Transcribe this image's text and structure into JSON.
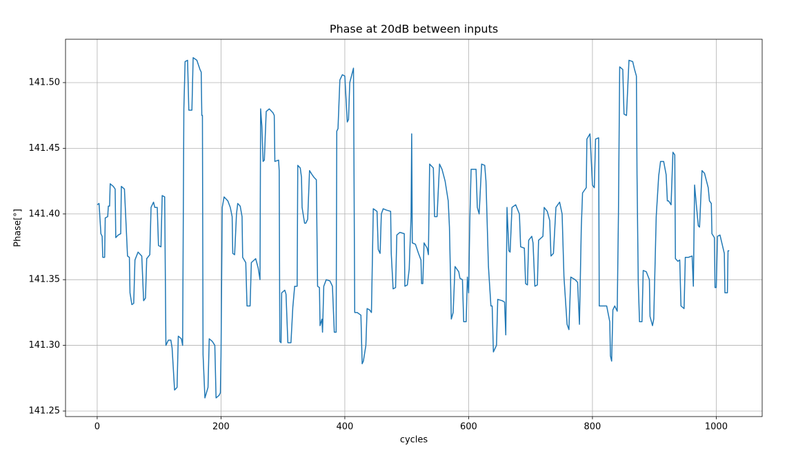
{
  "chart_data": {
    "type": "line",
    "title": "Phase at 20dB between inputs",
    "x_label": "cycles",
    "y_label": "Phase[°]",
    "xlim": [
      -51.15,
      1074.15
    ],
    "ylim": [
      141.2458,
      141.533
    ],
    "xticks": [
      0,
      200,
      400,
      600,
      800,
      1000
    ],
    "yticks": [
      141.25,
      {
        "value": 141.3,
        "label": "141.30"
      },
      141.35,
      {
        "value": 141.4,
        "label": "141.40"
      },
      141.45,
      {
        "value": 141.5,
        "label": "141.50"
      }
    ],
    "grid": true,
    "series": [
      {
        "color": "#1f77b4",
        "x": [
          0,
          3,
          6,
          8,
          9,
          12,
          13,
          17,
          18,
          20,
          21,
          26,
          29,
          30,
          34,
          38,
          39,
          44,
          49,
          52,
          53,
          56,
          59,
          61,
          66,
          72,
          75,
          78,
          80,
          85,
          87,
          91,
          93,
          97,
          99,
          103,
          105,
          109,
          111,
          115,
          119,
          121,
          125,
          129,
          131,
          136,
          138,
          140,
          142,
          146,
          148,
          153,
          155,
          161,
          166,
          168,
          169,
          170,
          171,
          174,
          179,
          181,
          186,
          190,
          192,
          197,
          199,
          200,
          202,
          205,
          211,
          215,
          218,
          219,
          222,
          225,
          227,
          231,
          234,
          235,
          240,
          242,
          247,
          249,
          256,
          260,
          263,
          264,
          266,
          268,
          270,
          273,
          278,
          284,
          286,
          287,
          293,
          294,
          295,
          297,
          298,
          303,
          305,
          308,
          313,
          316,
          319,
          323,
          324,
          328,
          330,
          331,
          335,
          337,
          340,
          343,
          347,
          350,
          354,
          356,
          359,
          360,
          363,
          364,
          366,
          370,
          376,
          380,
          383,
          386,
          387,
          389,
          392,
          396,
          400,
          404,
          406,
          408,
          414,
          416,
          420,
          426,
          428,
          430,
          434,
          436,
          440,
          443,
          446,
          452,
          454,
          457,
          459,
          462,
          467,
          474,
          475,
          478,
          482,
          484,
          489,
          496,
          497,
          501,
          504,
          507,
          508,
          509,
          514,
          519,
          523,
          524,
          526,
          528,
          533,
          535,
          537,
          543,
          545,
          549,
          553,
          557,
          562,
          567,
          569,
          571,
          572,
          575,
          578,
          584,
          586,
          590,
          592,
          596,
          598,
          600,
          602,
          604,
          612,
          614,
          617,
          621,
          626,
          628,
          632,
          636,
          638,
          640,
          645,
          647,
          654,
          658,
          660,
          662,
          665,
          667,
          670,
          676,
          682,
          684,
          690,
          692,
          695,
          697,
          702,
          704,
          707,
          711,
          713,
          720,
          722,
          727,
          731,
          733,
          737,
          741,
          747,
          751,
          754,
          759,
          762,
          765,
          772,
          776,
          779,
          782,
          784,
          790,
          791,
          796,
          800,
          803,
          805,
          810,
          811,
          818,
          823,
          828,
          829,
          831,
          833,
          836,
          840,
          842,
          844,
          849,
          851,
          855,
          859,
          865,
          868,
          871,
          872,
          874,
          876,
          880,
          882,
          887,
          892,
          893,
          897,
          899,
          903,
          907,
          910,
          915,
          919,
          921,
          923,
          927,
          930,
          933,
          934,
          938,
          941,
          943,
          948,
          950,
          955,
          961,
          963,
          965,
          968,
          971,
          973,
          977,
          981,
          987,
          989,
          992,
          993,
          997,
          998,
          1000,
          1002,
          1006,
          1009,
          1013,
          1014,
          1018,
          1019,
          1021
        ],
        "values": [
          141.407,
          141.408,
          141.385,
          141.383,
          141.367,
          141.367,
          141.397,
          141.398,
          141.406,
          141.406,
          141.423,
          141.421,
          141.419,
          141.382,
          141.384,
          141.385,
          141.421,
          141.419,
          141.368,
          141.367,
          141.34,
          141.331,
          141.332,
          141.365,
          141.371,
          141.368,
          141.334,
          141.336,
          141.366,
          141.369,
          141.405,
          141.409,
          141.405,
          141.405,
          141.376,
          141.375,
          141.414,
          141.413,
          141.3,
          141.304,
          141.304,
          141.298,
          141.266,
          141.268,
          141.307,
          141.305,
          141.3,
          141.48,
          141.516,
          141.517,
          141.479,
          141.479,
          141.519,
          141.517,
          141.51,
          141.508,
          141.475,
          141.475,
          141.293,
          141.26,
          141.268,
          141.305,
          141.303,
          141.3,
          141.26,
          141.262,
          141.264,
          141.292,
          141.405,
          141.413,
          141.41,
          141.405,
          141.398,
          141.37,
          141.369,
          141.4,
          141.408,
          141.406,
          141.398,
          141.367,
          141.363,
          141.33,
          141.33,
          141.363,
          141.366,
          141.359,
          141.35,
          141.48,
          141.467,
          141.44,
          141.441,
          141.478,
          141.48,
          141.477,
          141.475,
          141.44,
          141.441,
          141.433,
          141.303,
          141.302,
          141.34,
          141.342,
          141.339,
          141.302,
          141.302,
          141.329,
          141.345,
          141.345,
          141.437,
          141.435,
          141.428,
          141.405,
          141.393,
          141.393,
          141.396,
          141.433,
          141.43,
          141.428,
          141.426,
          141.345,
          141.344,
          141.315,
          141.32,
          141.31,
          141.345,
          141.35,
          141.349,
          141.345,
          141.31,
          141.31,
          141.463,
          141.465,
          141.502,
          141.506,
          141.505,
          141.47,
          141.472,
          141.5,
          141.511,
          141.325,
          141.325,
          141.323,
          141.286,
          141.288,
          141.3,
          141.328,
          141.327,
          141.325,
          141.404,
          141.402,
          141.373,
          141.37,
          141.4,
          141.404,
          141.403,
          141.402,
          141.37,
          141.343,
          141.344,
          141.384,
          141.386,
          141.385,
          141.345,
          141.346,
          141.358,
          141.398,
          141.461,
          141.378,
          141.377,
          141.37,
          141.365,
          141.347,
          141.347,
          141.378,
          141.374,
          141.369,
          141.438,
          141.435,
          141.398,
          141.398,
          141.438,
          141.434,
          141.425,
          141.41,
          141.39,
          141.345,
          141.32,
          141.325,
          141.36,
          141.356,
          141.351,
          141.35,
          141.318,
          141.318,
          141.352,
          141.34,
          141.397,
          141.434,
          141.434,
          141.405,
          141.4,
          141.438,
          141.437,
          141.425,
          141.36,
          141.33,
          141.33,
          141.295,
          141.3,
          141.335,
          141.334,
          141.333,
          141.308,
          141.405,
          141.372,
          141.371,
          141.405,
          141.407,
          141.4,
          141.375,
          141.374,
          141.347,
          141.346,
          141.38,
          141.383,
          141.378,
          141.345,
          141.346,
          141.38,
          141.383,
          141.405,
          141.402,
          141.395,
          141.368,
          141.37,
          141.405,
          141.409,
          141.4,
          141.352,
          141.316,
          141.312,
          141.352,
          141.35,
          141.348,
          141.316,
          141.39,
          141.416,
          141.42,
          141.457,
          141.461,
          141.422,
          141.42,
          141.457,
          141.458,
          141.33,
          141.33,
          141.33,
          141.318,
          141.292,
          141.288,
          141.327,
          141.33,
          141.326,
          141.4,
          141.512,
          141.51,
          141.476,
          141.475,
          141.517,
          141.516,
          141.51,
          141.505,
          141.43,
          141.348,
          141.318,
          141.318,
          141.357,
          141.356,
          141.35,
          141.322,
          141.315,
          141.32,
          141.398,
          141.429,
          141.44,
          141.44,
          141.43,
          141.41,
          141.41,
          141.407,
          141.447,
          141.445,
          141.366,
          141.364,
          141.365,
          141.33,
          141.328,
          141.367,
          141.367,
          141.368,
          141.345,
          141.422,
          141.406,
          141.391,
          141.39,
          141.433,
          141.431,
          141.42,
          141.41,
          141.408,
          141.385,
          141.382,
          141.344,
          141.344,
          141.383,
          141.384,
          141.378,
          141.37,
          141.34,
          141.34,
          141.372,
          141.372
        ]
      }
    ]
  }
}
